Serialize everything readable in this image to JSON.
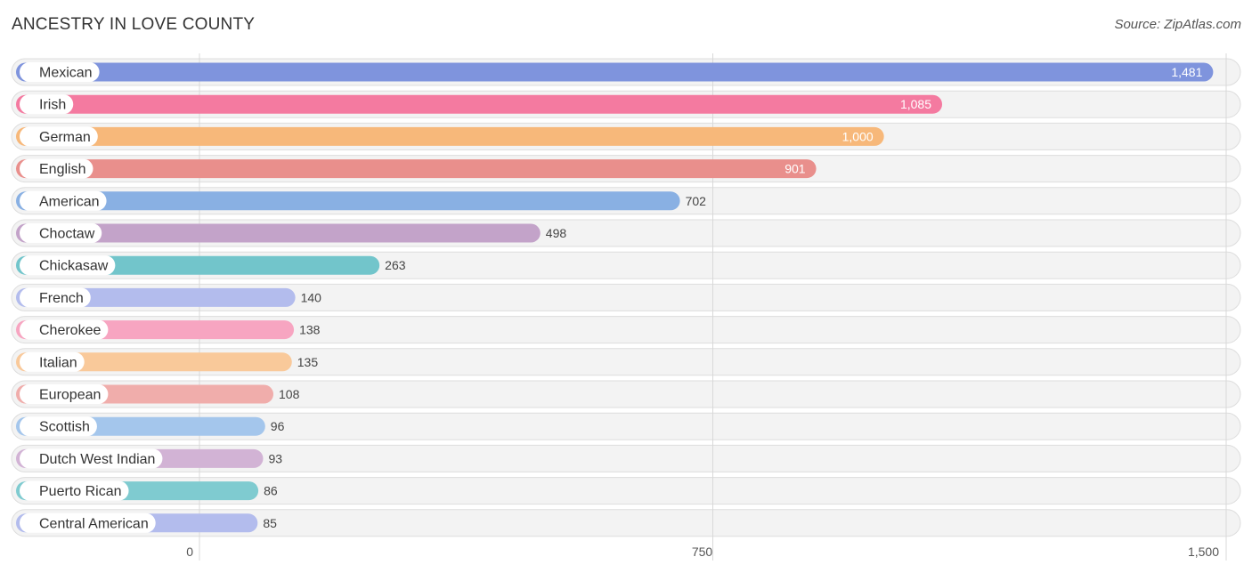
{
  "header": {
    "title": "ANCESTRY IN LOVE COUNTY",
    "source": "Source: ZipAtlas.com"
  },
  "chart_data": {
    "type": "bar",
    "orientation": "horizontal",
    "title": "ANCESTRY IN LOVE COUNTY",
    "categories": [
      "Mexican",
      "Irish",
      "German",
      "English",
      "American",
      "Choctaw",
      "Chickasaw",
      "French",
      "Cherokee",
      "Italian",
      "European",
      "Scottish",
      "Dutch West Indian",
      "Puerto Rican",
      "Central American"
    ],
    "values": [
      1481,
      1085,
      1000,
      901,
      702,
      498,
      263,
      140,
      138,
      135,
      108,
      96,
      93,
      86,
      85
    ],
    "value_labels": [
      "1,481",
      "1,085",
      "1,000",
      "901",
      "702",
      "498",
      "263",
      "140",
      "138",
      "135",
      "108",
      "96",
      "93",
      "86",
      "85"
    ],
    "colors": [
      "#7f94dd",
      "#f47aa0",
      "#f7b87a",
      "#e98f8c",
      "#89b0e3",
      "#c3a3c9",
      "#72c5cb",
      "#b3bced",
      "#f7a5c1",
      "#f9c99a",
      "#f0adab",
      "#a4c6ec",
      "#d2b3d5",
      "#7fcbd0",
      "#b3bced"
    ],
    "xlim": [
      0,
      1500
    ],
    "x_ticks": [
      0,
      750,
      1500
    ],
    "x_tick_labels": [
      "0",
      "750",
      "1,500"
    ],
    "grid": true
  }
}
